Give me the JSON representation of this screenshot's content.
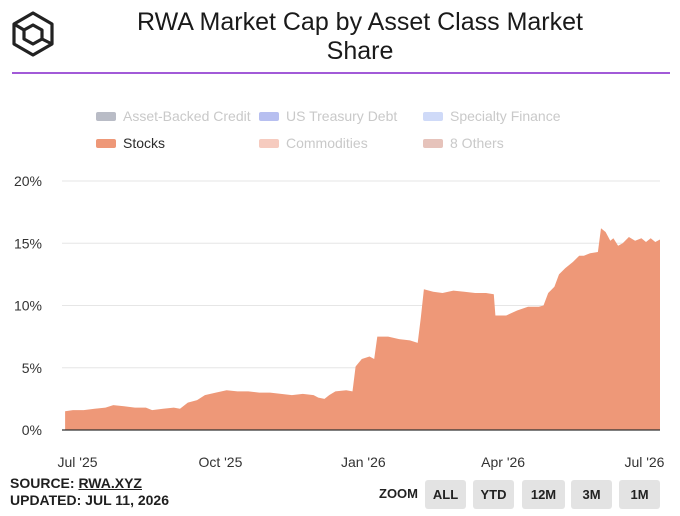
{
  "header": {
    "title_line1": "RWA Market Cap by Asset Class Market",
    "title_line2": "Share"
  },
  "accent_color": "#a25ad8",
  "legend": [
    {
      "label": "Asset-Backed Credit",
      "color": "#b9bcc6",
      "active": false
    },
    {
      "label": "US Treasury Debt",
      "color": "#b7bff0",
      "active": false
    },
    {
      "label": "Specialty Finance",
      "color": "#cfdaf8",
      "active": false
    },
    {
      "label": "Stocks",
      "color": "#ee9878",
      "active": true
    },
    {
      "label": "Commodities",
      "color": "#f6cbbf",
      "active": false
    },
    {
      "label": "8 Others",
      "color": "#e6c3bb",
      "active": false
    }
  ],
  "footer": {
    "source_prefix": "SOURCE: ",
    "source_link": "RWA.XYZ",
    "updated": "UPDATED: JUL 11, 2026"
  },
  "zoom": {
    "label": "ZOOM",
    "buttons": [
      "ALL",
      "YTD",
      "12M",
      "3M",
      "1M"
    ]
  },
  "chart_data": {
    "type": "area",
    "title": "RWA Market Cap by Asset Class Market Share",
    "series_name": "Stocks",
    "color": "#ee9878",
    "y_unit": "%",
    "ylim": [
      0,
      20
    ],
    "y_ticks": [
      0,
      5,
      10,
      15,
      20
    ],
    "y_tick_labels": [
      "0%",
      "5%",
      "10%",
      "15%",
      "20%"
    ],
    "x_ticks": [
      "2025-07-01",
      "2025-10-01",
      "2026-01-01",
      "2026-04-01",
      "2026-07-01"
    ],
    "x_tick_labels": [
      "Jul '25",
      "Oct '25",
      "Jan '26",
      "Apr '26",
      "Jul '26"
    ],
    "grid": true,
    "legend_position": "top",
    "points": [
      [
        "2025-06-23",
        1.5
      ],
      [
        "2025-06-28",
        1.6
      ],
      [
        "2025-07-05",
        1.6
      ],
      [
        "2025-07-12",
        1.7
      ],
      [
        "2025-07-19",
        1.8
      ],
      [
        "2025-07-24",
        2.0
      ],
      [
        "2025-07-31",
        1.9
      ],
      [
        "2025-08-07",
        1.8
      ],
      [
        "2025-08-14",
        1.8
      ],
      [
        "2025-08-18",
        1.6
      ],
      [
        "2025-08-25",
        1.7
      ],
      [
        "2025-09-01",
        1.8
      ],
      [
        "2025-09-05",
        1.7
      ],
      [
        "2025-09-10",
        2.2
      ],
      [
        "2025-09-16",
        2.4
      ],
      [
        "2025-09-21",
        2.8
      ],
      [
        "2025-09-28",
        3.0
      ],
      [
        "2025-10-05",
        3.2
      ],
      [
        "2025-10-12",
        3.1
      ],
      [
        "2025-10-19",
        3.1
      ],
      [
        "2025-10-26",
        3.0
      ],
      [
        "2025-11-02",
        3.0
      ],
      [
        "2025-11-09",
        2.9
      ],
      [
        "2025-11-16",
        2.8
      ],
      [
        "2025-11-23",
        2.9
      ],
      [
        "2025-11-30",
        2.8
      ],
      [
        "2025-12-03",
        2.6
      ],
      [
        "2025-12-07",
        2.5
      ],
      [
        "2025-12-10",
        2.8
      ],
      [
        "2025-12-14",
        3.1
      ],
      [
        "2025-12-21",
        3.2
      ],
      [
        "2025-12-25",
        3.1
      ],
      [
        "2025-12-27",
        5.1
      ],
      [
        "2025-12-31",
        5.7
      ],
      [
        "2026-01-05",
        5.9
      ],
      [
        "2026-01-08",
        5.7
      ],
      [
        "2026-01-10",
        7.5
      ],
      [
        "2026-01-17",
        7.5
      ],
      [
        "2026-01-24",
        7.3
      ],
      [
        "2026-01-31",
        7.2
      ],
      [
        "2026-02-05",
        7.0
      ],
      [
        "2026-02-07",
        9.0
      ],
      [
        "2026-02-09",
        11.3
      ],
      [
        "2026-02-15",
        11.1
      ],
      [
        "2026-02-21",
        11.0
      ],
      [
        "2026-02-28",
        11.2
      ],
      [
        "2026-03-07",
        11.1
      ],
      [
        "2026-03-14",
        11.0
      ],
      [
        "2026-03-21",
        11.0
      ],
      [
        "2026-03-26",
        10.9
      ],
      [
        "2026-03-27",
        9.2
      ],
      [
        "2026-04-03",
        9.2
      ],
      [
        "2026-04-10",
        9.6
      ],
      [
        "2026-04-17",
        9.9
      ],
      [
        "2026-04-24",
        9.9
      ],
      [
        "2026-04-27",
        10.0
      ],
      [
        "2026-04-30",
        11.0
      ],
      [
        "2026-05-04",
        11.5
      ],
      [
        "2026-05-07",
        12.5
      ],
      [
        "2026-05-11",
        13.0
      ],
      [
        "2026-05-16",
        13.5
      ],
      [
        "2026-05-20",
        14.0
      ],
      [
        "2026-05-23",
        14.0
      ],
      [
        "2026-05-27",
        14.2
      ],
      [
        "2026-06-01",
        14.3
      ],
      [
        "2026-06-03",
        16.2
      ],
      [
        "2026-06-06",
        15.9
      ],
      [
        "2026-06-09",
        15.2
      ],
      [
        "2026-06-11",
        15.4
      ],
      [
        "2026-06-14",
        14.8
      ],
      [
        "2026-06-17",
        15.0
      ],
      [
        "2026-06-21",
        15.5
      ],
      [
        "2026-06-25",
        15.2
      ],
      [
        "2026-06-29",
        15.4
      ],
      [
        "2026-07-02",
        15.1
      ],
      [
        "2026-07-05",
        15.4
      ],
      [
        "2026-07-08",
        15.1
      ],
      [
        "2026-07-11",
        15.3
      ]
    ]
  }
}
